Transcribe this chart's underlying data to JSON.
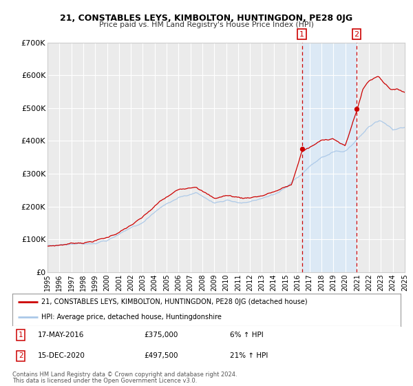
{
  "title": "21, CONSTABLES LEYS, KIMBOLTON, HUNTINGDON, PE28 0JG",
  "subtitle": "Price paid vs. HM Land Registry's House Price Index (HPI)",
  "ylim": [
    0,
    700000
  ],
  "yticks": [
    0,
    100000,
    200000,
    300000,
    400000,
    500000,
    600000,
    700000
  ],
  "ytick_labels": [
    "£0",
    "£100K",
    "£200K",
    "£300K",
    "£400K",
    "£500K",
    "£600K",
    "£700K"
  ],
  "x_start_year": 1995,
  "x_end_year": 2025,
  "background_color": "#ffffff",
  "plot_bg_color": "#ebebeb",
  "grid_color": "#ffffff",
  "red_line_color": "#cc0000",
  "blue_line_color": "#aac8e8",
  "sale1_date": 2016.37,
  "sale1_price": 375000,
  "sale2_date": 2020.958,
  "sale2_price": 497500,
  "sale1_date_str": "17-MAY-2016",
  "sale1_price_str": "£375,000",
  "sale1_hpi_str": "6% ↑ HPI",
  "sale2_date_str": "15-DEC-2020",
  "sale2_price_str": "£497,500",
  "sale2_hpi_str": "21% ↑ HPI",
  "legend_label_red": "21, CONSTABLES LEYS, KIMBOLTON, HUNTINGDON, PE28 0JG (detached house)",
  "legend_label_blue": "HPI: Average price, detached house, Huntingdonshire",
  "footer_line1": "Contains HM Land Registry data © Crown copyright and database right 2024.",
  "footer_line2": "This data is licensed under the Open Government Licence v3.0.",
  "highlight_color": "#dce9f5",
  "dashed_color": "#cc0000",
  "box_color": "#cc0000"
}
